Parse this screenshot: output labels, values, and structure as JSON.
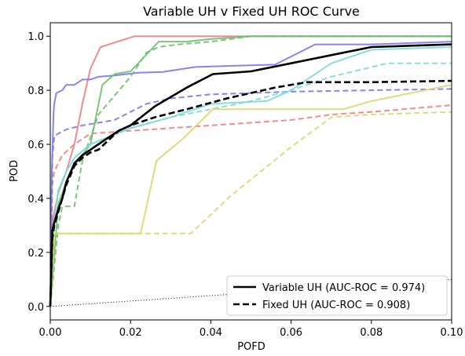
{
  "chart_data": {
    "type": "line",
    "title": "Variable UH v Fixed UH ROC Curve",
    "xlabel": "POFD",
    "ylabel": "POD",
    "xlim": [
      0,
      0.1
    ],
    "ylim": [
      -0.05,
      1.05
    ],
    "xticks": [
      0,
      0.02,
      0.04,
      0.06,
      0.08,
      0.1
    ],
    "xtick_labels": [
      "0.00",
      "0.02",
      "0.04",
      "0.06",
      "0.08",
      "0.10"
    ],
    "yticks": [
      0,
      0.2,
      0.4,
      0.6,
      0.8,
      1.0
    ],
    "ytick_labels": [
      "0.0",
      "0.2",
      "0.4",
      "0.6",
      "0.8",
      "1.0"
    ],
    "grid": false,
    "legend_position": "lower-right",
    "series": [
      {
        "name": "",
        "color": "#f08080",
        "dash": "solid",
        "x": [
          0,
          0.0004,
          0.001,
          0.002,
          0.004,
          0.006,
          0.008,
          0.01,
          0.0125,
          0.021,
          0.03,
          0.04,
          0.05,
          0.06,
          0.08,
          0.1
        ],
        "y": [
          0,
          0.3,
          0.35,
          0.42,
          0.5,
          0.6,
          0.75,
          0.88,
          0.96,
          1.0,
          1.0,
          1.0,
          1.0,
          1.0,
          1.0,
          1.0
        ]
      },
      {
        "name": "",
        "color": "#f08080",
        "dash": "dashed",
        "x": [
          0,
          0.0005,
          0.001,
          0.003,
          0.006,
          0.01,
          0.02,
          0.04,
          0.06,
          0.07,
          0.08,
          0.1
        ],
        "y": [
          0,
          0.45,
          0.5,
          0.56,
          0.6,
          0.64,
          0.65,
          0.67,
          0.69,
          0.71,
          0.72,
          0.745
        ]
      },
      {
        "name": "",
        "color": "#7878f0",
        "dash": "solid",
        "x": [
          0,
          0.0004,
          0.0008,
          0.001,
          0.0015,
          0.003,
          0.004,
          0.006,
          0.008,
          0.01,
          0.012,
          0.016,
          0.022,
          0.028,
          0.036,
          0.044,
          0.056,
          0.066,
          0.08,
          0.1
        ],
        "y": [
          0,
          0.5,
          0.71,
          0.75,
          0.79,
          0.8,
          0.82,
          0.82,
          0.84,
          0.84,
          0.85,
          0.855,
          0.865,
          0.868,
          0.886,
          0.89,
          0.895,
          0.97,
          0.97,
          0.98
        ]
      },
      {
        "name": "",
        "color": "#7878f0",
        "dash": "dashed",
        "x": [
          0,
          0.0005,
          0.001,
          0.002,
          0.004,
          0.008,
          0.012,
          0.016,
          0.02,
          0.024,
          0.03,
          0.04,
          0.05,
          0.06,
          0.08,
          0.1
        ],
        "y": [
          0,
          0.55,
          0.63,
          0.64,
          0.655,
          0.67,
          0.68,
          0.69,
          0.72,
          0.75,
          0.77,
          0.785,
          0.79,
          0.795,
          0.8,
          0.805
        ]
      },
      {
        "name": "",
        "color": "#6fbf6f",
        "dash": "solid",
        "x": [
          0,
          0.002,
          0.004,
          0.006,
          0.008,
          0.01,
          0.013,
          0.016,
          0.02,
          0.027,
          0.034,
          0.04,
          0.05,
          0.06,
          0.08,
          0.1
        ],
        "y": [
          0,
          0.38,
          0.46,
          0.52,
          0.56,
          0.6,
          0.82,
          0.86,
          0.87,
          0.98,
          0.98,
          0.99,
          1.0,
          1.0,
          1.0,
          1.0
        ]
      },
      {
        "name": "",
        "color": "#6fbf6f",
        "dash": "dashed",
        "x": [
          0,
          0.002,
          0.003,
          0.004,
          0.006,
          0.008,
          0.012,
          0.016,
          0.02,
          0.024,
          0.027,
          0.032,
          0.04,
          0.05,
          0.06,
          0.08,
          0.1
        ],
        "y": [
          0,
          0.3,
          0.37,
          0.37,
          0.37,
          0.54,
          0.71,
          0.78,
          0.85,
          0.94,
          0.96,
          0.97,
          0.98,
          1.0,
          1.0,
          1.0,
          1.0
        ]
      },
      {
        "name": "",
        "color": "#7ed8d8",
        "dash": "solid",
        "x": [
          0,
          0.0008,
          0.002,
          0.004,
          0.006,
          0.01,
          0.02,
          0.03,
          0.04,
          0.054,
          0.06,
          0.07,
          0.08,
          0.1
        ],
        "y": [
          0,
          0.3,
          0.43,
          0.5,
          0.55,
          0.6,
          0.66,
          0.7,
          0.75,
          0.76,
          0.8,
          0.9,
          0.95,
          0.96
        ]
      },
      {
        "name": "",
        "color": "#7ed8d8",
        "dash": "dashed",
        "x": [
          0,
          0.0008,
          0.002,
          0.004,
          0.006,
          0.01,
          0.02,
          0.03,
          0.04,
          0.05,
          0.06,
          0.07,
          0.084,
          0.1
        ],
        "y": [
          0,
          0.3,
          0.42,
          0.5,
          0.55,
          0.6,
          0.66,
          0.7,
          0.73,
          0.76,
          0.8,
          0.85,
          0.9,
          0.9
        ]
      },
      {
        "name": "",
        "color": "#d8d870",
        "dash": "solid",
        "x": [
          0,
          0.001,
          0.01,
          0.02,
          0.0225,
          0.0265,
          0.033,
          0.0405,
          0.06,
          0.073,
          0.08,
          0.1
        ],
        "y": [
          0,
          0.27,
          0.27,
          0.27,
          0.27,
          0.54,
          0.62,
          0.73,
          0.73,
          0.73,
          0.76,
          0.82
        ]
      },
      {
        "name": "",
        "color": "#d8d870",
        "dash": "dashed",
        "x": [
          0,
          0.001,
          0.01,
          0.02,
          0.03,
          0.035,
          0.045,
          0.06,
          0.07,
          0.08,
          0.1
        ],
        "y": [
          0,
          0.27,
          0.27,
          0.27,
          0.27,
          0.27,
          0.41,
          0.59,
          0.7,
          0.71,
          0.72
        ]
      },
      {
        "name": "Variable UH (AUC-ROC = 0.974)",
        "color": "#000000",
        "dash": "solid",
        "width": 2.6,
        "x": [
          0,
          0.0005,
          0.001,
          0.002,
          0.003,
          0.004,
          0.006,
          0.008,
          0.01,
          0.012,
          0.017,
          0.02,
          0.026,
          0.034,
          0.0405,
          0.05,
          0.06,
          0.07,
          0.08,
          0.1
        ],
        "y": [
          0,
          0.28,
          0.31,
          0.36,
          0.4,
          0.46,
          0.53,
          0.56,
          0.58,
          0.6,
          0.65,
          0.67,
          0.74,
          0.81,
          0.86,
          0.87,
          0.9,
          0.93,
          0.96,
          0.97
        ]
      },
      {
        "name": "Fixed UH (AUC-ROC = 0.908)",
        "color": "#000000",
        "dash": "dashed",
        "width": 2.6,
        "x": [
          0,
          0.0005,
          0.001,
          0.002,
          0.003,
          0.004,
          0.006,
          0.008,
          0.01,
          0.012,
          0.017,
          0.02,
          0.026,
          0.034,
          0.044,
          0.056,
          0.064,
          0.08,
          0.1
        ],
        "y": [
          0,
          0.25,
          0.3,
          0.35,
          0.4,
          0.45,
          0.52,
          0.55,
          0.57,
          0.58,
          0.65,
          0.67,
          0.7,
          0.73,
          0.77,
          0.81,
          0.83,
          0.83,
          0.835
        ]
      },
      {
        "name": "",
        "color": "#000000",
        "dash": "dotted",
        "width": 1.0,
        "x": [
          0,
          0.1
        ],
        "y": [
          0,
          0.1
        ]
      }
    ]
  }
}
